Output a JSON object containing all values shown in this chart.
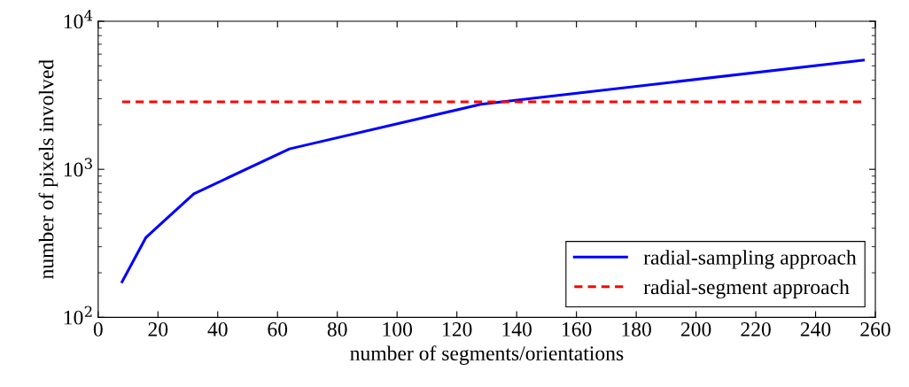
{
  "chart_data": {
    "type": "line",
    "xlabel": "number of segments/orientations",
    "ylabel": "number of pixels involved",
    "series": [
      {
        "name": "radial-sampling approach",
        "color": "#0000ff",
        "x": [
          8,
          16,
          32,
          64,
          128,
          256
        ],
        "values": [
          174,
          347,
          683,
          1374,
          2750,
          5470
        ],
        "line_style": "solid"
      },
      {
        "name": "radial-segment approach",
        "color": "#ff0000",
        "x": [
          8,
          256
        ],
        "values": [
          2860,
          2860
        ],
        "line_style": "dashed"
      }
    ],
    "xlim": [
      0,
      260
    ],
    "xticks": [
      0,
      20,
      40,
      60,
      80,
      100,
      120,
      140,
      160,
      180,
      200,
      220,
      240,
      260
    ],
    "ylim": [
      100,
      10000
    ],
    "yticks": [
      {
        "value": 100,
        "label": "10$^{2}$"
      },
      {
        "value": 1000,
        "label": "10$^{3}$"
      },
      {
        "value": 10000,
        "label": "10$^{4}$"
      }
    ],
    "log": "y",
    "grid": false,
    "legend": "bottom right",
    "marker": "none"
  }
}
